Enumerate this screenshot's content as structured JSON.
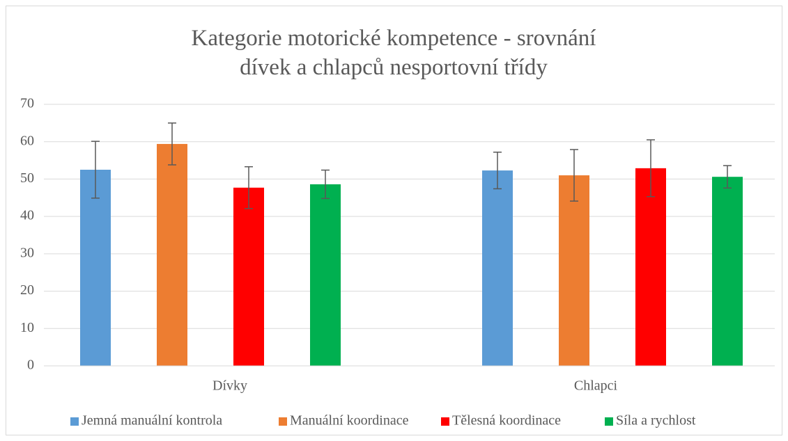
{
  "chart_data": {
    "type": "bar",
    "title": "Kategorie motorické kompetence - srovnání dívek a chlapců nesportovní třídy",
    "categories": [
      "Dívky",
      "Chlapci"
    ],
    "series": [
      {
        "name": "Jemná manuální kontrola",
        "color": "#5b9bd5",
        "values": [
          52.5,
          52.3
        ],
        "errors": [
          7.6,
          4.9
        ]
      },
      {
        "name": "Manuální koordinace",
        "color": "#ed7d31",
        "values": [
          59.4,
          51.0
        ],
        "errors": [
          5.6,
          6.9
        ]
      },
      {
        "name": "Tělesná koordinace",
        "color": "#ff0000",
        "values": [
          47.7,
          52.9
        ],
        "errors": [
          5.6,
          7.6
        ]
      },
      {
        "name": "Síla a rychlost",
        "color": "#00b050",
        "values": [
          48.6,
          50.6
        ],
        "errors": [
          3.8,
          3.0
        ]
      }
    ],
    "ylim": [
      0,
      70
    ],
    "yticks": [
      0,
      10,
      20,
      30,
      40,
      50,
      60,
      70
    ],
    "grid": true,
    "legend": "bottom"
  }
}
